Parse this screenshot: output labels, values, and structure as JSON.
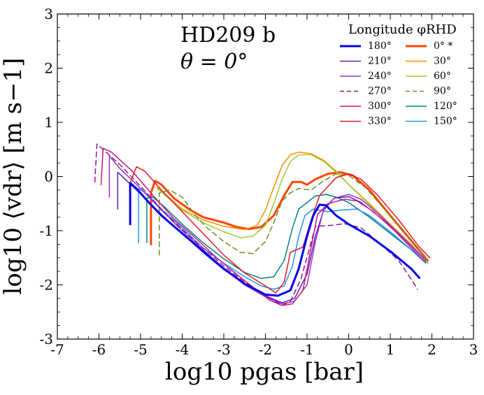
{
  "chart_data": {
    "type": "line",
    "title": "HD209 b",
    "annotation": "θ = 0°",
    "xlabel": "log10 pgas [bar]",
    "ylabel": "log10 ⟨vdr⟩ [m s−1]",
    "xlim": [
      -7,
      3
    ],
    "ylim": [
      -3,
      3
    ],
    "xticks": [
      -7,
      -6,
      -5,
      -4,
      -3,
      -2,
      -1,
      0,
      1,
      2,
      3
    ],
    "yticks": [
      -3,
      -2,
      -1,
      0,
      1,
      2,
      3
    ],
    "xtick_labels": [
      "-7",
      "-6",
      "-5",
      "-4",
      "-3",
      "-2",
      "-1",
      "0",
      "1",
      "2",
      "3"
    ],
    "ytick_labels": [
      "-3",
      "-2",
      "-1",
      "0",
      "1",
      "2",
      "3"
    ],
    "legend_title": "Longitude φRHD",
    "legend_position": "top-right",
    "series": [
      {
        "name": "180°",
        "color": "#0000ee",
        "width": 3,
        "dash": false,
        "points": [
          [
            -5.25,
            -0.88
          ],
          [
            -5.25,
            -0.12
          ],
          [
            -5.1,
            -0.22
          ],
          [
            -4.8,
            -0.48
          ],
          [
            -4.5,
            -0.72
          ],
          [
            -4.0,
            -1.05
          ],
          [
            -3.5,
            -1.38
          ],
          [
            -3.0,
            -1.7
          ],
          [
            -2.5,
            -1.98
          ],
          [
            -2.0,
            -2.18
          ],
          [
            -1.7,
            -2.2
          ],
          [
            -1.4,
            -2.1
          ],
          [
            -1.2,
            -1.7
          ],
          [
            -1.0,
            -1.1
          ],
          [
            -0.85,
            -0.72
          ],
          [
            -0.7,
            -0.52
          ],
          [
            -0.55,
            -0.53
          ],
          [
            -0.3,
            -0.72
          ],
          [
            0.0,
            -0.88
          ],
          [
            0.5,
            -1.1
          ],
          [
            1.0,
            -1.38
          ],
          [
            1.5,
            -1.7
          ],
          [
            1.7,
            -1.87
          ]
        ]
      },
      {
        "name": "210°",
        "color": "#5a1fb8",
        "width": 1.5,
        "dash": false,
        "points": [
          [
            -5.55,
            -0.6
          ],
          [
            -5.55,
            0.08
          ],
          [
            -5.3,
            -0.1
          ],
          [
            -5.0,
            -0.32
          ],
          [
            -4.5,
            -0.7
          ],
          [
            -4.0,
            -1.05
          ],
          [
            -3.5,
            -1.4
          ],
          [
            -3.0,
            -1.72
          ],
          [
            -2.5,
            -1.98
          ],
          [
            -2.0,
            -2.2
          ],
          [
            -1.6,
            -2.33
          ],
          [
            -1.3,
            -2.25
          ],
          [
            -1.0,
            -1.8
          ],
          [
            -0.8,
            -1.1
          ],
          [
            -0.6,
            -0.62
          ],
          [
            -0.35,
            -0.4
          ],
          [
            0.0,
            -0.37
          ],
          [
            0.3,
            -0.48
          ],
          [
            0.7,
            -0.72
          ],
          [
            1.2,
            -1.05
          ],
          [
            1.8,
            -1.5
          ]
        ]
      },
      {
        "name": "240°",
        "color": "#9932cc",
        "width": 1.5,
        "dash": false,
        "points": [
          [
            -5.75,
            -0.38
          ],
          [
            -5.75,
            0.38
          ],
          [
            -5.5,
            0.15
          ],
          [
            -5.0,
            -0.22
          ],
          [
            -4.5,
            -0.62
          ],
          [
            -4.0,
            -1.0
          ],
          [
            -3.5,
            -1.35
          ],
          [
            -3.0,
            -1.7
          ],
          [
            -2.5,
            -2.0
          ],
          [
            -2.0,
            -2.22
          ],
          [
            -1.6,
            -2.35
          ],
          [
            -1.3,
            -2.3
          ],
          [
            -1.0,
            -2.0
          ],
          [
            -0.8,
            -1.2
          ],
          [
            -0.6,
            -0.6
          ],
          [
            -0.35,
            -0.4
          ],
          [
            0.0,
            -0.33
          ],
          [
            0.3,
            -0.42
          ],
          [
            0.7,
            -0.68
          ],
          [
            1.2,
            -1.05
          ],
          [
            1.85,
            -1.55
          ]
        ]
      },
      {
        "name": "270°",
        "color": "#8b1a8b",
        "width": 1.5,
        "dash": true,
        "points": [
          [
            -6.1,
            -0.1
          ],
          [
            -6.05,
            0.6
          ],
          [
            -5.9,
            0.5
          ],
          [
            -5.5,
            0.22
          ],
          [
            -5.0,
            -0.18
          ],
          [
            -4.5,
            -0.6
          ],
          [
            -4.0,
            -0.98
          ],
          [
            -3.5,
            -1.32
          ],
          [
            -3.0,
            -1.65
          ],
          [
            -2.5,
            -1.95
          ],
          [
            -2.0,
            -2.2
          ],
          [
            -1.6,
            -2.38
          ],
          [
            -1.4,
            -2.3
          ],
          [
            -1.15,
            -1.9
          ],
          [
            -0.95,
            -1.35
          ],
          [
            -0.8,
            -0.92
          ],
          [
            -0.4,
            -0.9
          ],
          [
            -0.1,
            -0.87
          ],
          [
            0.3,
            -0.95
          ],
          [
            0.7,
            -1.2
          ],
          [
            1.2,
            -1.55
          ],
          [
            1.55,
            -1.95
          ],
          [
            1.65,
            -2.08
          ]
        ]
      },
      {
        "name": "300°",
        "color": "#c71585",
        "width": 1.5,
        "dash": false,
        "points": [
          [
            -5.95,
            -0.15
          ],
          [
            -5.9,
            0.52
          ],
          [
            -5.7,
            0.45
          ],
          [
            -5.2,
            0.1
          ],
          [
            -4.7,
            -0.35
          ],
          [
            -4.2,
            -0.78
          ],
          [
            -3.7,
            -1.12
          ],
          [
            -3.2,
            -1.48
          ],
          [
            -2.7,
            -1.8
          ],
          [
            -2.2,
            -2.1
          ],
          [
            -1.9,
            -2.28
          ],
          [
            -1.6,
            -2.38
          ],
          [
            -1.35,
            -2.35
          ],
          [
            -1.1,
            -2.1
          ],
          [
            -0.95,
            -1.5
          ],
          [
            -0.75,
            -0.7
          ],
          [
            -0.5,
            -0.5
          ],
          [
            -0.1,
            -0.42
          ],
          [
            0.2,
            -0.45
          ],
          [
            0.6,
            -0.65
          ],
          [
            1.1,
            -1.0
          ],
          [
            1.8,
            -1.55
          ]
        ]
      },
      {
        "name": "330°",
        "color": "#e31a1c",
        "width": 1.5,
        "dash": false,
        "points": [
          [
            -5.25,
            -0.12
          ],
          [
            -5.1,
            0.18
          ],
          [
            -4.9,
            0.1
          ],
          [
            -4.5,
            -0.25
          ],
          [
            -4.0,
            -0.65
          ],
          [
            -3.5,
            -1.05
          ],
          [
            -3.0,
            -1.45
          ],
          [
            -2.5,
            -1.78
          ],
          [
            -2.0,
            -2.02
          ],
          [
            -1.75,
            -2.15
          ],
          [
            -1.55,
            -1.95
          ],
          [
            -1.4,
            -1.4
          ],
          [
            -1.1,
            -1.3
          ],
          [
            -0.9,
            -0.8
          ],
          [
            -0.7,
            -0.35
          ],
          [
            -0.3,
            -0.02
          ],
          [
            0.0,
            0.05
          ],
          [
            0.3,
            -0.05
          ],
          [
            0.7,
            -0.35
          ],
          [
            1.2,
            -0.8
          ],
          [
            1.7,
            -1.3
          ],
          [
            1.95,
            -1.5
          ]
        ]
      },
      {
        "name": "0° *",
        "color": "#ff4500",
        "width": 3,
        "dash": false,
        "points": [
          [
            -4.75,
            -1.25
          ],
          [
            -4.75,
            -0.3
          ],
          [
            -4.65,
            -0.08
          ],
          [
            -4.5,
            -0.15
          ],
          [
            -4.2,
            -0.4
          ],
          [
            -3.8,
            -0.62
          ],
          [
            -3.5,
            -0.75
          ],
          [
            -3.0,
            -0.85
          ],
          [
            -2.7,
            -0.93
          ],
          [
            -2.4,
            -0.97
          ],
          [
            -2.1,
            -0.93
          ],
          [
            -1.8,
            -0.72
          ],
          [
            -1.55,
            -0.35
          ],
          [
            -1.35,
            -0.1
          ],
          [
            -1.15,
            -0.1
          ],
          [
            -1.0,
            -0.15
          ],
          [
            -0.8,
            -0.05
          ],
          [
            -0.5,
            0.05
          ],
          [
            -0.2,
            0.08
          ],
          [
            0.1,
            0.02
          ],
          [
            0.5,
            -0.25
          ],
          [
            1.0,
            -0.72
          ],
          [
            1.5,
            -1.18
          ],
          [
            1.9,
            -1.55
          ]
        ]
      },
      {
        "name": "30°",
        "color": "#ff8c00",
        "width": 1.5,
        "dash": false,
        "points": [
          [
            -4.6,
            -0.2
          ],
          [
            -4.3,
            -0.4
          ],
          [
            -4.0,
            -0.6
          ],
          [
            -3.5,
            -0.8
          ],
          [
            -3.0,
            -0.92
          ],
          [
            -2.5,
            -0.98
          ],
          [
            -2.2,
            -0.9
          ],
          [
            -2.0,
            -0.62
          ],
          [
            -1.8,
            -0.2
          ],
          [
            -1.6,
            0.2
          ],
          [
            -1.4,
            0.4
          ],
          [
            -1.2,
            0.45
          ],
          [
            -0.9,
            0.42
          ],
          [
            -0.6,
            0.3
          ],
          [
            -0.3,
            0.1
          ],
          [
            0.0,
            -0.15
          ],
          [
            0.5,
            -0.5
          ],
          [
            1.0,
            -0.88
          ],
          [
            1.5,
            -1.25
          ],
          [
            1.9,
            -1.6
          ]
        ]
      },
      {
        "name": "60°",
        "color": "#9acd32",
        "width": 1.5,
        "dash": false,
        "points": [
          [
            -4.6,
            -0.22
          ],
          [
            -4.3,
            -0.42
          ],
          [
            -4.0,
            -0.62
          ],
          [
            -3.5,
            -0.85
          ],
          [
            -3.0,
            -1.02
          ],
          [
            -2.6,
            -1.13
          ],
          [
            -2.3,
            -1.1
          ],
          [
            -2.0,
            -0.9
          ],
          [
            -1.8,
            -0.5
          ],
          [
            -1.6,
            -0.05
          ],
          [
            -1.4,
            0.28
          ],
          [
            -1.2,
            0.4
          ],
          [
            -0.9,
            0.4
          ],
          [
            -0.6,
            0.28
          ],
          [
            -0.3,
            0.08
          ],
          [
            0.0,
            -0.15
          ],
          [
            0.5,
            -0.52
          ],
          [
            1.0,
            -0.9
          ],
          [
            1.5,
            -1.28
          ],
          [
            1.9,
            -1.58
          ]
        ]
      },
      {
        "name": "90°",
        "color": "#6b8e23",
        "width": 1.5,
        "dash": true,
        "points": [
          [
            -4.55,
            -1.45
          ],
          [
            -4.55,
            -0.3
          ],
          [
            -4.3,
            -0.25
          ],
          [
            -4.0,
            -0.38
          ],
          [
            -3.7,
            -0.7
          ],
          [
            -3.4,
            -0.95
          ],
          [
            -3.0,
            -1.2
          ],
          [
            -2.6,
            -1.4
          ],
          [
            -2.3,
            -1.42
          ],
          [
            -2.0,
            -1.2
          ],
          [
            -1.8,
            -0.85
          ],
          [
            -1.6,
            -0.45
          ],
          [
            -1.4,
            -0.3
          ],
          [
            -1.2,
            -0.22
          ],
          [
            -0.9,
            -0.25
          ],
          [
            -0.6,
            -0.08
          ],
          [
            -0.3,
            0.05
          ],
          [
            0.0,
            0.02
          ],
          [
            0.4,
            -0.2
          ],
          [
            0.8,
            -0.55
          ],
          [
            1.3,
            -0.98
          ],
          [
            1.9,
            -1.55
          ]
        ]
      },
      {
        "name": "120°",
        "color": "#008080",
        "width": 1.5,
        "dash": false,
        "points": [
          [
            -4.85,
            -1.22
          ],
          [
            -4.85,
            -0.4
          ],
          [
            -4.7,
            -0.38
          ],
          [
            -4.4,
            -0.58
          ],
          [
            -4.0,
            -0.88
          ],
          [
            -3.5,
            -1.22
          ],
          [
            -3.0,
            -1.52
          ],
          [
            -2.5,
            -1.77
          ],
          [
            -2.1,
            -1.88
          ],
          [
            -1.8,
            -1.85
          ],
          [
            -1.55,
            -1.55
          ],
          [
            -1.35,
            -0.95
          ],
          [
            -1.2,
            -0.6
          ],
          [
            -1.0,
            -0.48
          ],
          [
            -0.8,
            -0.36
          ],
          [
            -0.55,
            -0.33
          ],
          [
            -0.3,
            -0.38
          ],
          [
            0.0,
            -0.48
          ],
          [
            0.5,
            -0.75
          ],
          [
            1.0,
            -1.05
          ],
          [
            1.5,
            -1.35
          ],
          [
            1.85,
            -1.58
          ]
        ]
      },
      {
        "name": "150°",
        "color": "#1e90ff",
        "width": 1.5,
        "dash": false,
        "points": [
          [
            -5.05,
            -1.22
          ],
          [
            -5.05,
            -0.22
          ],
          [
            -4.85,
            -0.32
          ],
          [
            -4.5,
            -0.6
          ],
          [
            -4.0,
            -0.95
          ],
          [
            -3.5,
            -1.32
          ],
          [
            -3.0,
            -1.6
          ],
          [
            -2.5,
            -1.85
          ],
          [
            -2.1,
            -2.02
          ],
          [
            -1.8,
            -2.08
          ],
          [
            -1.55,
            -2.02
          ],
          [
            -1.35,
            -1.65
          ],
          [
            -1.2,
            -1.1
          ],
          [
            -1.05,
            -0.72
          ],
          [
            -0.85,
            -0.6
          ],
          [
            -0.5,
            -0.65
          ],
          [
            -0.2,
            -0.62
          ],
          [
            0.2,
            -0.6
          ],
          [
            0.5,
            -0.72
          ],
          [
            1.0,
            -1.02
          ],
          [
            1.5,
            -1.35
          ],
          [
            1.85,
            -1.6
          ]
        ]
      }
    ]
  }
}
